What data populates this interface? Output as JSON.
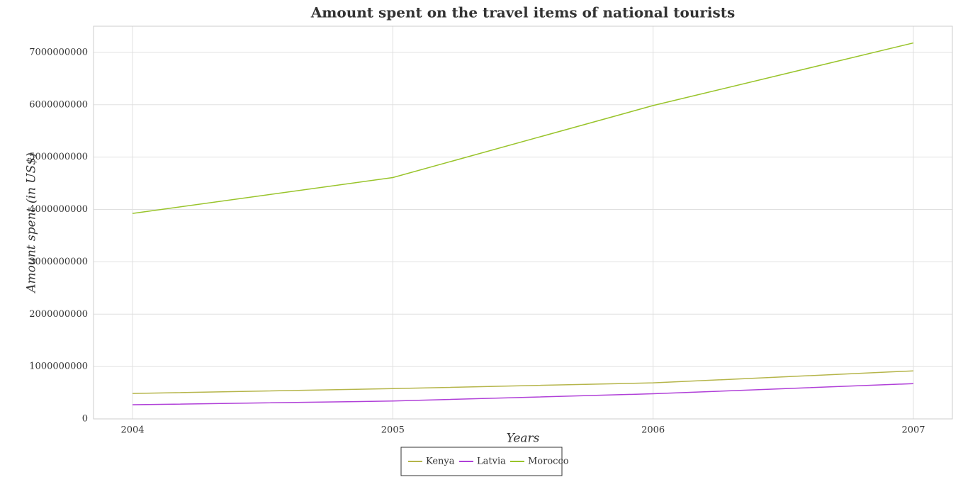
{
  "chart_data": {
    "type": "line",
    "title": "Amount spent on the travel items of national tourists",
    "x_label": "Years",
    "y_label": "Amount spent (in US$)",
    "categories": [
      "2004",
      "2005",
      "2006",
      "2007"
    ],
    "series": [
      {
        "name": "Kenya",
        "color": "#b5b54a",
        "values": [
          486000000,
          579000000,
          688000000,
          918000000
        ]
      },
      {
        "name": "Latvia",
        "color": "#b040d8",
        "values": [
          270000000,
          341000000,
          480000000,
          674000000
        ]
      },
      {
        "name": "Morocco",
        "color": "#99c42b",
        "values": [
          3924000000,
          4610000000,
          5985000000,
          7181000000
        ]
      }
    ],
    "ylim": [
      0,
      7500000000
    ],
    "yticks": [
      0,
      1000000000,
      2000000000,
      3000000000,
      4000000000,
      5000000000,
      6000000000,
      7000000000
    ],
    "grid": true
  }
}
